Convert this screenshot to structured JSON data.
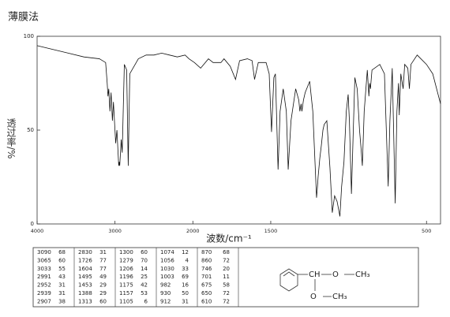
{
  "chart_data": {
    "type": "line",
    "title": "薄膜法",
    "xlabel": "波数/cm⁻¹",
    "ylabel": "透过率/%",
    "x": [
      4000,
      3800,
      3600,
      3400,
      3200,
      3120,
      3100,
      3090,
      3080,
      3065,
      3050,
      3033,
      3020,
      2991,
      2975,
      2952,
      2945,
      2939,
      2920,
      2907,
      2880,
      2850,
      2830,
      2810,
      2700,
      2600,
      2500,
      2400,
      2300,
      2200,
      2100,
      2050,
      1990,
      1950,
      1900,
      1870,
      1820,
      1800,
      1760,
      1726,
      1700,
      1650,
      1620,
      1604,
      1580,
      1530,
      1510,
      1495,
      1480,
      1470,
      1453,
      1440,
      1420,
      1400,
      1388,
      1370,
      1340,
      1320,
      1313,
      1305,
      1300,
      1290,
      1279,
      1250,
      1230,
      1206,
      1200,
      1196,
      1185,
      1175,
      1165,
      1157,
      1140,
      1120,
      1105,
      1090,
      1074,
      1065,
      1056,
      1045,
      1030,
      1015,
      1003,
      995,
      982,
      970,
      960,
      945,
      930,
      920,
      912,
      900,
      880,
      870,
      865,
      860,
      850,
      800,
      770,
      746,
      735,
      720,
      701,
      690,
      680,
      675,
      665,
      650,
      640,
      620,
      610,
      600,
      560,
      500,
      460,
      410
    ],
    "series": [
      {
        "color": "#111111",
        "values": [
          95,
          93,
          91,
          89,
          88,
          86,
          75,
          68,
          72,
          60,
          70,
          55,
          65,
          43,
          50,
          31,
          33,
          31,
          45,
          38,
          85,
          82,
          31,
          80,
          88,
          90,
          90,
          91,
          90,
          89,
          90,
          88,
          86,
          83,
          88,
          86,
          86,
          88,
          84,
          77,
          87,
          88,
          87,
          77,
          86,
          86,
          80,
          49,
          78,
          80,
          29,
          60,
          72,
          60,
          29,
          55,
          72,
          66,
          60,
          64,
          60,
          66,
          70,
          76,
          60,
          14,
          20,
          25,
          35,
          42,
          50,
          53,
          55,
          30,
          6,
          15,
          12,
          8,
          4,
          20,
          33,
          60,
          69,
          55,
          16,
          50,
          78,
          72,
          50,
          40,
          31,
          60,
          82,
          68,
          75,
          72,
          82,
          85,
          80,
          20,
          55,
          83,
          11,
          60,
          75,
          58,
          80,
          72,
          85,
          83,
          72,
          85,
          90,
          85,
          80,
          64
        ]
      }
    ],
    "xlim": [
      4000,
      410
    ],
    "x_scale_break": 2000,
    "x_scale_factor": 2,
    "xticks": [
      4000,
      3000,
      2000,
      1500,
      500
    ],
    "ylim": [
      0,
      100
    ],
    "yticks": [
      0,
      50,
      100
    ]
  },
  "peak_table": {
    "wavenumber": [
      3090,
      3065,
      3033,
      2991,
      2952,
      2939,
      2907,
      2830,
      1726,
      1604,
      1495,
      1453,
      1388,
      1313,
      1300,
      1279,
      1206,
      1196,
      1175,
      1157,
      1105,
      1074,
      1056,
      1030,
      1003,
      982,
      930,
      912,
      870,
      860,
      746,
      701,
      675,
      650,
      610
    ],
    "transmittance": [
      68,
      60,
      55,
      43,
      31,
      31,
      38,
      31,
      77,
      77,
      49,
      29,
      29,
      60,
      60,
      70,
      14,
      25,
      42,
      53,
      6,
      12,
      4,
      33,
      69,
      16,
      50,
      31,
      68,
      72,
      20,
      11,
      58,
      72,
      72
    ]
  },
  "structure": {
    "labels": [
      "CH",
      "O",
      "CH₃",
      "O",
      "CH₃"
    ]
  }
}
